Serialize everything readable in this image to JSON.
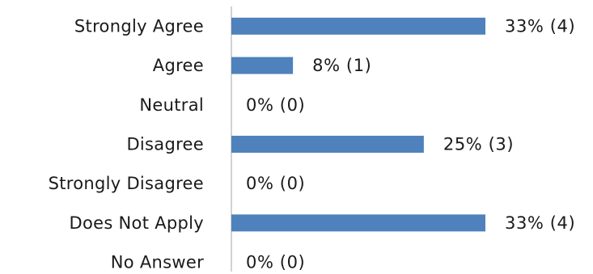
{
  "chart_data": {
    "type": "bar",
    "orientation": "horizontal",
    "categories": [
      "Strongly Agree",
      "Agree",
      "Neutral",
      "Disagree",
      "Strongly Disagree",
      "Does Not Apply",
      "No Answer"
    ],
    "values": [
      33,
      8,
      0,
      25,
      0,
      33,
      0
    ],
    "counts": [
      4,
      1,
      0,
      3,
      0,
      4,
      0
    ],
    "value_labels": [
      "33% (4)",
      "8% (1)",
      "0% (0)",
      "25% (3)",
      "0% (0)",
      "33% (4)",
      "0% (0)"
    ],
    "title": "",
    "xlabel": "",
    "ylabel": "",
    "xlim": [
      0,
      40
    ],
    "grid": false,
    "legend": "none",
    "bar_color": "#4f81bd",
    "axis_color": "#a6a6a6"
  }
}
